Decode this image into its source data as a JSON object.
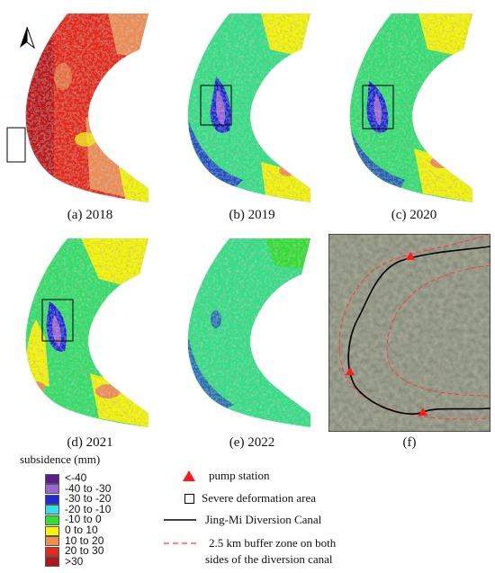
{
  "panels": [
    {
      "id": "a",
      "caption": "(a) 2018"
    },
    {
      "id": "b",
      "caption": "(b) 2019"
    },
    {
      "id": "c",
      "caption": "(c) 2020"
    },
    {
      "id": "d",
      "caption": "(d) 2021"
    },
    {
      "id": "e",
      "caption": "(e) 2022"
    },
    {
      "id": "f",
      "caption": "(f)"
    }
  ],
  "north_arrow_icon": "north-arrow-icon",
  "legend": {
    "title": "subsidence (mm)",
    "classes": [
      {
        "label": "<-40",
        "color": "#5a1e8a"
      },
      {
        "label": "-40 to -30",
        "color": "#9a66d6"
      },
      {
        "label": "-30 to -20",
        "color": "#1f2ad6"
      },
      {
        "label": "-20 to -10",
        "color": "#33e0e8"
      },
      {
        "label": "-10 to 0",
        "color": "#2fe02f"
      },
      {
        "label": "0 to 10",
        "color": "#f5f500"
      },
      {
        "label": "10 to 20",
        "color": "#f08c50"
      },
      {
        "label": "20 to 30",
        "color": "#e52a1a"
      },
      {
        "label": ">30",
        "color": "#b3151c"
      }
    ]
  },
  "symbols": {
    "pump": "pump station",
    "severe": "Severe deformation area",
    "canal": "Jing-Mi Diversion Canal",
    "buffer_line1": "2.5 km buffer zone on both",
    "buffer_line2": "sides of the diversion canal"
  }
}
